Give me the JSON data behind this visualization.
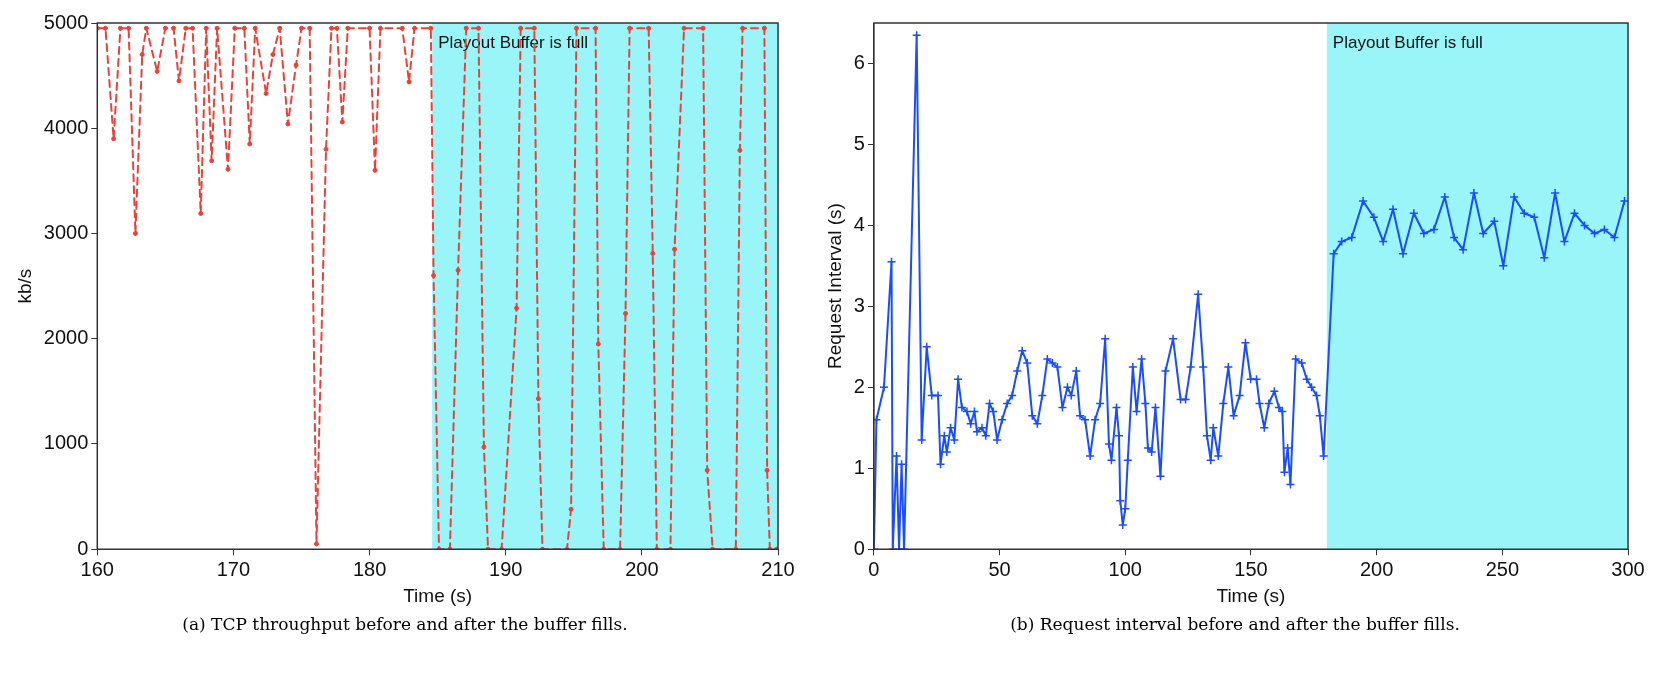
{
  "chart_data": [
    {
      "type": "line",
      "xlabel": "Time (s)",
      "ylabel": "kb/s",
      "xlim": [
        160,
        210
      ],
      "xticks": [
        160,
        170,
        180,
        190,
        200,
        210
      ],
      "ylim": [
        0,
        5000
      ],
      "yticks": [
        0,
        1000,
        2000,
        3000,
        4000,
        5000
      ],
      "grid": false,
      "legend": false,
      "marker": "circle",
      "line_style": "dashed",
      "bands": [
        {
          "axis": "x",
          "from": 184.6,
          "to": 210,
          "label": "Playout Buffer is full",
          "color": "#99f5f8"
        }
      ],
      "annotations": [
        "(a) TCP throughput before and after the buffer fills."
      ],
      "series": [
        {
          "color": "#e8433a",
          "x": [
            160,
            160.6,
            161.2,
            161.7,
            162.3,
            162.8,
            163.3,
            163.6,
            164.4,
            165.0,
            165.6,
            166.0,
            166.5,
            167.0,
            167.6,
            168.0,
            168.4,
            168.8,
            169.6,
            170.1,
            170.8,
            171.2,
            171.6,
            172.4,
            172.9,
            173.4,
            174.0,
            174.6,
            175.0,
            175.6,
            176.1,
            176.8,
            177.2,
            177.6,
            178.0,
            178.4,
            180.0,
            180.4,
            180.8,
            182.4,
            182.9,
            183.3,
            184.5,
            184.7,
            185.1,
            185.9,
            186.5,
            187.1,
            188.0,
            188.4,
            188.7,
            189.7,
            190.8,
            191.1,
            192.1,
            192.4,
            192.7,
            194.5,
            194.8,
            195.2,
            196.6,
            196.8,
            197.2,
            198.4,
            198.8,
            199.1,
            200.5,
            200.8,
            201.1,
            202.1,
            202.4,
            203.1,
            204.5,
            204.8,
            205.2,
            206.9,
            207.2,
            207.4,
            209.0,
            209.2,
            209.4,
            209.9
          ],
          "values": [
            4950,
            4950,
            3900,
            4950,
            4950,
            3000,
            4700,
            4950,
            4540,
            4950,
            4950,
            4450,
            4950,
            4950,
            3190,
            4950,
            3690,
            4950,
            3610,
            4950,
            4950,
            3850,
            4950,
            4330,
            4700,
            4950,
            4040,
            4600,
            4950,
            4950,
            50,
            3800,
            4950,
            4950,
            4060,
            4950,
            4950,
            3600,
            4950,
            4950,
            4440,
            4950,
            4950,
            2600,
            0,
            0,
            2650,
            4950,
            4950,
            970,
            0,
            0,
            2290,
            4950,
            4950,
            1430,
            0,
            0,
            380,
            4950,
            4950,
            1950,
            0,
            0,
            2240,
            4950,
            4950,
            2810,
            0,
            0,
            2850,
            4950,
            4950,
            750,
            0,
            0,
            3790,
            4950,
            4950,
            750,
            0,
            0
          ]
        }
      ]
    },
    {
      "type": "line",
      "xlabel": "Time (s)",
      "ylabel": "Request Interval (s)",
      "xlim": [
        0,
        300
      ],
      "xticks": [
        0,
        50,
        100,
        150,
        200,
        250,
        300
      ],
      "ylim": [
        0,
        6.5
      ],
      "yticks": [
        0,
        1,
        2,
        3,
        4,
        5,
        6
      ],
      "grid": false,
      "legend": false,
      "marker": "cross",
      "line_style": "solid",
      "bands": [
        {
          "axis": "x",
          "from": 180.2,
          "to": 300,
          "label": "Playout Buffer is full",
          "color": "#99f5f8"
        }
      ],
      "annotations": [
        "(b) Request interval before and after the buffer fills."
      ],
      "series": [
        {
          "color": "#1a4dff",
          "x": [
            0,
            1,
            4,
            7,
            7.5,
            9,
            10,
            11,
            12,
            17,
            19,
            21,
            23,
            25.5,
            26.5,
            28,
            29,
            30.5,
            32,
            33.5,
            35,
            37,
            38.5,
            40,
            41,
            43,
            44.5,
            46,
            47.5,
            49,
            51,
            53,
            55,
            57,
            59,
            61,
            63,
            65,
            67,
            69,
            71,
            73,
            75,
            77,
            78.5,
            80.5,
            82,
            84,
            86,
            88,
            90,
            92,
            93.5,
            94.5,
            96.5,
            97.5,
            98,
            99,
            100,
            101,
            103,
            104.5,
            106.5,
            108,
            109,
            110.5,
            112,
            114,
            116,
            119,
            122,
            124,
            126,
            129,
            131,
            132.5,
            134,
            135,
            137,
            139,
            141,
            143.1,
            145.5,
            147.8,
            149.9,
            152.2,
            153.4,
            155.3,
            157.1,
            159.3,
            161.1,
            162.5,
            163.3,
            164.6,
            165.7,
            167.8,
            170.2,
            172.2,
            174.1,
            176.1,
            177.4,
            178.9,
            182.9,
            186.1,
            190.1,
            194.6,
            198.9,
            202.6,
            206.5,
            210.5,
            214.8,
            218.8,
            222.8,
            227.1,
            230.8,
            234.4,
            238.7,
            242.4,
            246.8,
            250.4,
            254.7,
            258.7,
            262.7,
            266.7,
            271,
            274.7,
            278.7,
            282.7,
            286.7,
            290.6,
            294.6,
            298.6
          ],
          "values": [
            0,
            1.6,
            2.0,
            3.55,
            0,
            1.15,
            0,
            1.05,
            0,
            6.35,
            1.35,
            2.5,
            1.9,
            1.9,
            1.05,
            1.4,
            1.2,
            1.5,
            1.35,
            2.1,
            1.75,
            1.7,
            1.55,
            1.7,
            1.45,
            1.5,
            1.4,
            1.8,
            1.7,
            1.35,
            1.6,
            1.8,
            1.9,
            2.2,
            2.45,
            2.3,
            1.65,
            1.55,
            1.9,
            2.35,
            2.3,
            2.25,
            1.75,
            2.0,
            1.9,
            2.2,
            1.65,
            1.6,
            1.15,
            1.6,
            1.8,
            2.6,
            1.3,
            1.1,
            1.75,
            1.4,
            0.6,
            0.3,
            0.5,
            1.1,
            2.25,
            1.7,
            2.35,
            1.8,
            1.25,
            1.2,
            1.75,
            0.9,
            2.2,
            2.6,
            1.85,
            1.85,
            2.25,
            3.15,
            2.25,
            1.4,
            1.1,
            1.5,
            1.15,
            1.8,
            2.25,
            1.65,
            1.9,
            2.55,
            2.1,
            2.1,
            1.8,
            1.5,
            1.8,
            1.95,
            1.75,
            1.7,
            0.95,
            1.25,
            0.8,
            2.35,
            2.3,
            2.1,
            2.0,
            1.9,
            1.65,
            1.15,
            3.65,
            3.8,
            3.85,
            4.3,
            4.1,
            3.8,
            4.2,
            3.65,
            4.15,
            3.9,
            3.95,
            4.35,
            3.85,
            3.7,
            4.4,
            3.9,
            4.05,
            3.5,
            4.35,
            4.15,
            4.1,
            3.6,
            4.4,
            3.8,
            4.15,
            4.0,
            3.9,
            3.95,
            3.85,
            4.3
          ]
        }
      ]
    }
  ]
}
